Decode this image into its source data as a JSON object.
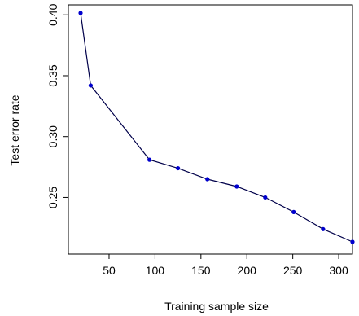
{
  "chart_data": {
    "type": "line",
    "title": "",
    "xlabel": "Training sample size",
    "ylabel": "Test error rate",
    "xlim": [
      19,
      315
    ],
    "ylim": [
      0.2135,
      0.4015
    ],
    "xticks": [
      50,
      100,
      150,
      200,
      250,
      300
    ],
    "yticks": [
      0.25,
      0.3,
      0.35,
      0.4
    ],
    "ytick_labels": [
      "0.25",
      "0.30",
      "0.35",
      "0.40"
    ],
    "grid": false,
    "legend": "none",
    "series": [
      {
        "x": [
          19,
          30,
          94,
          125,
          157,
          189,
          220,
          251,
          283,
          315
        ],
        "y": [
          0.4015,
          0.342,
          0.281,
          0.274,
          0.265,
          0.259,
          0.25,
          0.238,
          0.224,
          0.2135
        ],
        "line_color": "#00004a",
        "marker_color": "#0000cd"
      }
    ]
  }
}
